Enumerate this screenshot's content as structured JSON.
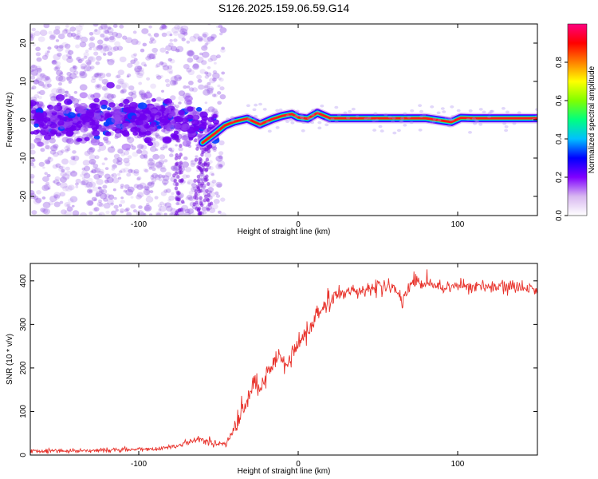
{
  "figure": {
    "title": "S126.2025.159.06.59.G14"
  },
  "chart_data": [
    {
      "type": "heatmap",
      "xlabel": "Height of straight line (km)",
      "ylabel": "Frequency (Hz)",
      "xlim": [
        -168,
        150
      ],
      "ylim": [
        -25,
        25
      ],
      "xticks": [
        -100,
        0,
        100
      ],
      "yticks": [
        -20,
        -10,
        0,
        10,
        20
      ],
      "colorbar": {
        "label": "Normalized spectral amplitude",
        "range": [
          0,
          1
        ],
        "ticks": [
          "0.0",
          "0.2",
          "0.4",
          "0.6",
          "0.8"
        ],
        "colors": [
          "#ffffff",
          "#d8b8f0",
          "#8000ff",
          "#0000ff",
          "#00c0ff",
          "#00ff80",
          "#80ff00",
          "#ffff00",
          "#ff8000",
          "#ff0000",
          "#ff0080"
        ]
      },
      "ridge": {
        "description_points_x": [
          -60,
          -52,
          -46,
          -40,
          -32,
          -24,
          -16,
          -10,
          -4,
          0,
          6,
          12,
          20,
          40,
          60,
          80,
          96,
          102,
          110,
          150
        ],
        "description_points_y": [
          -6,
          -3.5,
          -1.5,
          -0.5,
          0.3,
          -1.2,
          0.2,
          1.0,
          1.5,
          0.6,
          0.3,
          1.8,
          0.4,
          0.4,
          0.4,
          0.4,
          -0.6,
          0.5,
          0.4,
          0.4
        ]
      }
    },
    {
      "type": "line",
      "xlabel": "Height of straight line (km)",
      "ylabel": "SNR (10 * v/v)",
      "xlim": [
        -168,
        150
      ],
      "ylim": [
        0,
        440
      ],
      "xticks": [
        -100,
        0,
        100
      ],
      "yticks": [
        0,
        100,
        200,
        300,
        400
      ],
      "series": [
        {
          "color": "#e8312a",
          "x": [
            -168,
            -140,
            -110,
            -90,
            -75,
            -62,
            -55,
            -45,
            -38,
            -32,
            -28,
            -24,
            -18,
            -12,
            -8,
            -4,
            0,
            8,
            16,
            24,
            32,
            40,
            50,
            60,
            65,
            70,
            80,
            90,
            100,
            120,
            150
          ],
          "y": [
            10,
            10,
            12,
            14,
            22,
            38,
            28,
            25,
            75,
            125,
            160,
            150,
            190,
            230,
            205,
            230,
            250,
            300,
            340,
            370,
            375,
            380,
            385,
            390,
            345,
            390,
            395,
            385,
            390,
            385,
            385
          ]
        }
      ]
    }
  ]
}
